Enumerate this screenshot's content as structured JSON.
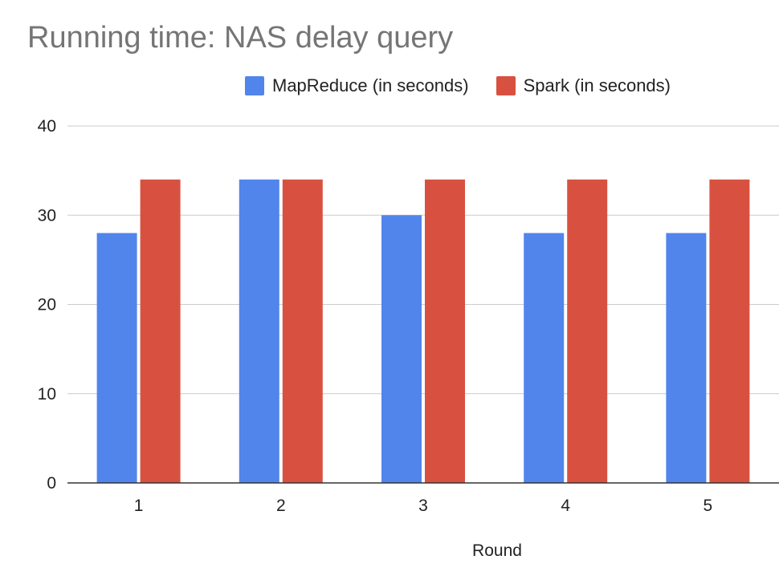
{
  "chart_data": {
    "type": "bar",
    "title": "Running time: NAS delay query",
    "xlabel": "Round",
    "ylabel": "",
    "categories": [
      "1",
      "2",
      "3",
      "4",
      "5"
    ],
    "series": [
      {
        "name": "MapReduce (in seconds)",
        "color": "#5185EC",
        "values": [
          28,
          34,
          30,
          28,
          28
        ]
      },
      {
        "name": "Spark (in seconds)",
        "color": "#D85140",
        "values": [
          34,
          34,
          34,
          34,
          34
        ]
      }
    ],
    "ylim": [
      0,
      40
    ],
    "yticks": [
      "0",
      "10",
      "20",
      "30",
      "40"
    ],
    "grid": true,
    "legend_position": "top"
  }
}
